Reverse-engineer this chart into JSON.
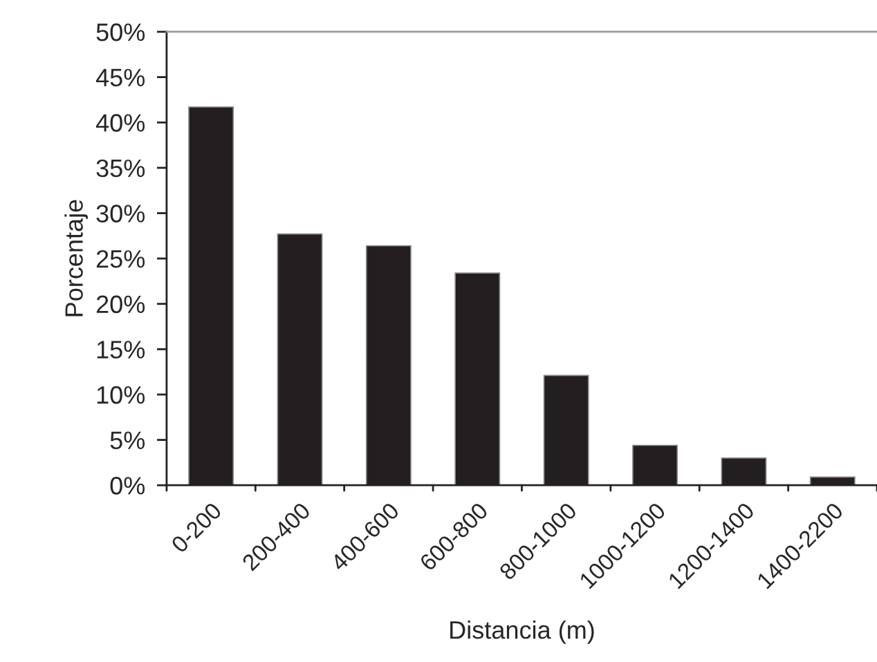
{
  "chart_data": {
    "type": "bar",
    "xlabel": "Distancia (m)",
    "ylabel": "Porcentaje",
    "categories": [
      "0-200",
      "200-400",
      "400-600",
      "600-800",
      "800-1000",
      "1000-1200",
      "1200-1400",
      "1400-2200"
    ],
    "values": [
      41.7,
      27.7,
      26.4,
      23.4,
      12.1,
      4.4,
      3.0,
      0.9
    ],
    "color": "#231f20",
    "ylim": [
      0,
      50
    ],
    "yticks": [
      {
        "value": 0,
        "label": "0%"
      },
      {
        "value": 5,
        "label": "5%"
      },
      {
        "value": 10,
        "label": "10%"
      },
      {
        "value": 15,
        "label": "15%"
      },
      {
        "value": 20,
        "label": "20%"
      },
      {
        "value": 25,
        "label": "25%"
      },
      {
        "value": 30,
        "label": "30%"
      },
      {
        "value": 35,
        "label": "35%"
      },
      {
        "value": 40,
        "label": "40%"
      },
      {
        "value": 45,
        "label": "45%"
      },
      {
        "value": 50,
        "label": "50%"
      }
    ],
    "grid": false,
    "legend": false
  }
}
